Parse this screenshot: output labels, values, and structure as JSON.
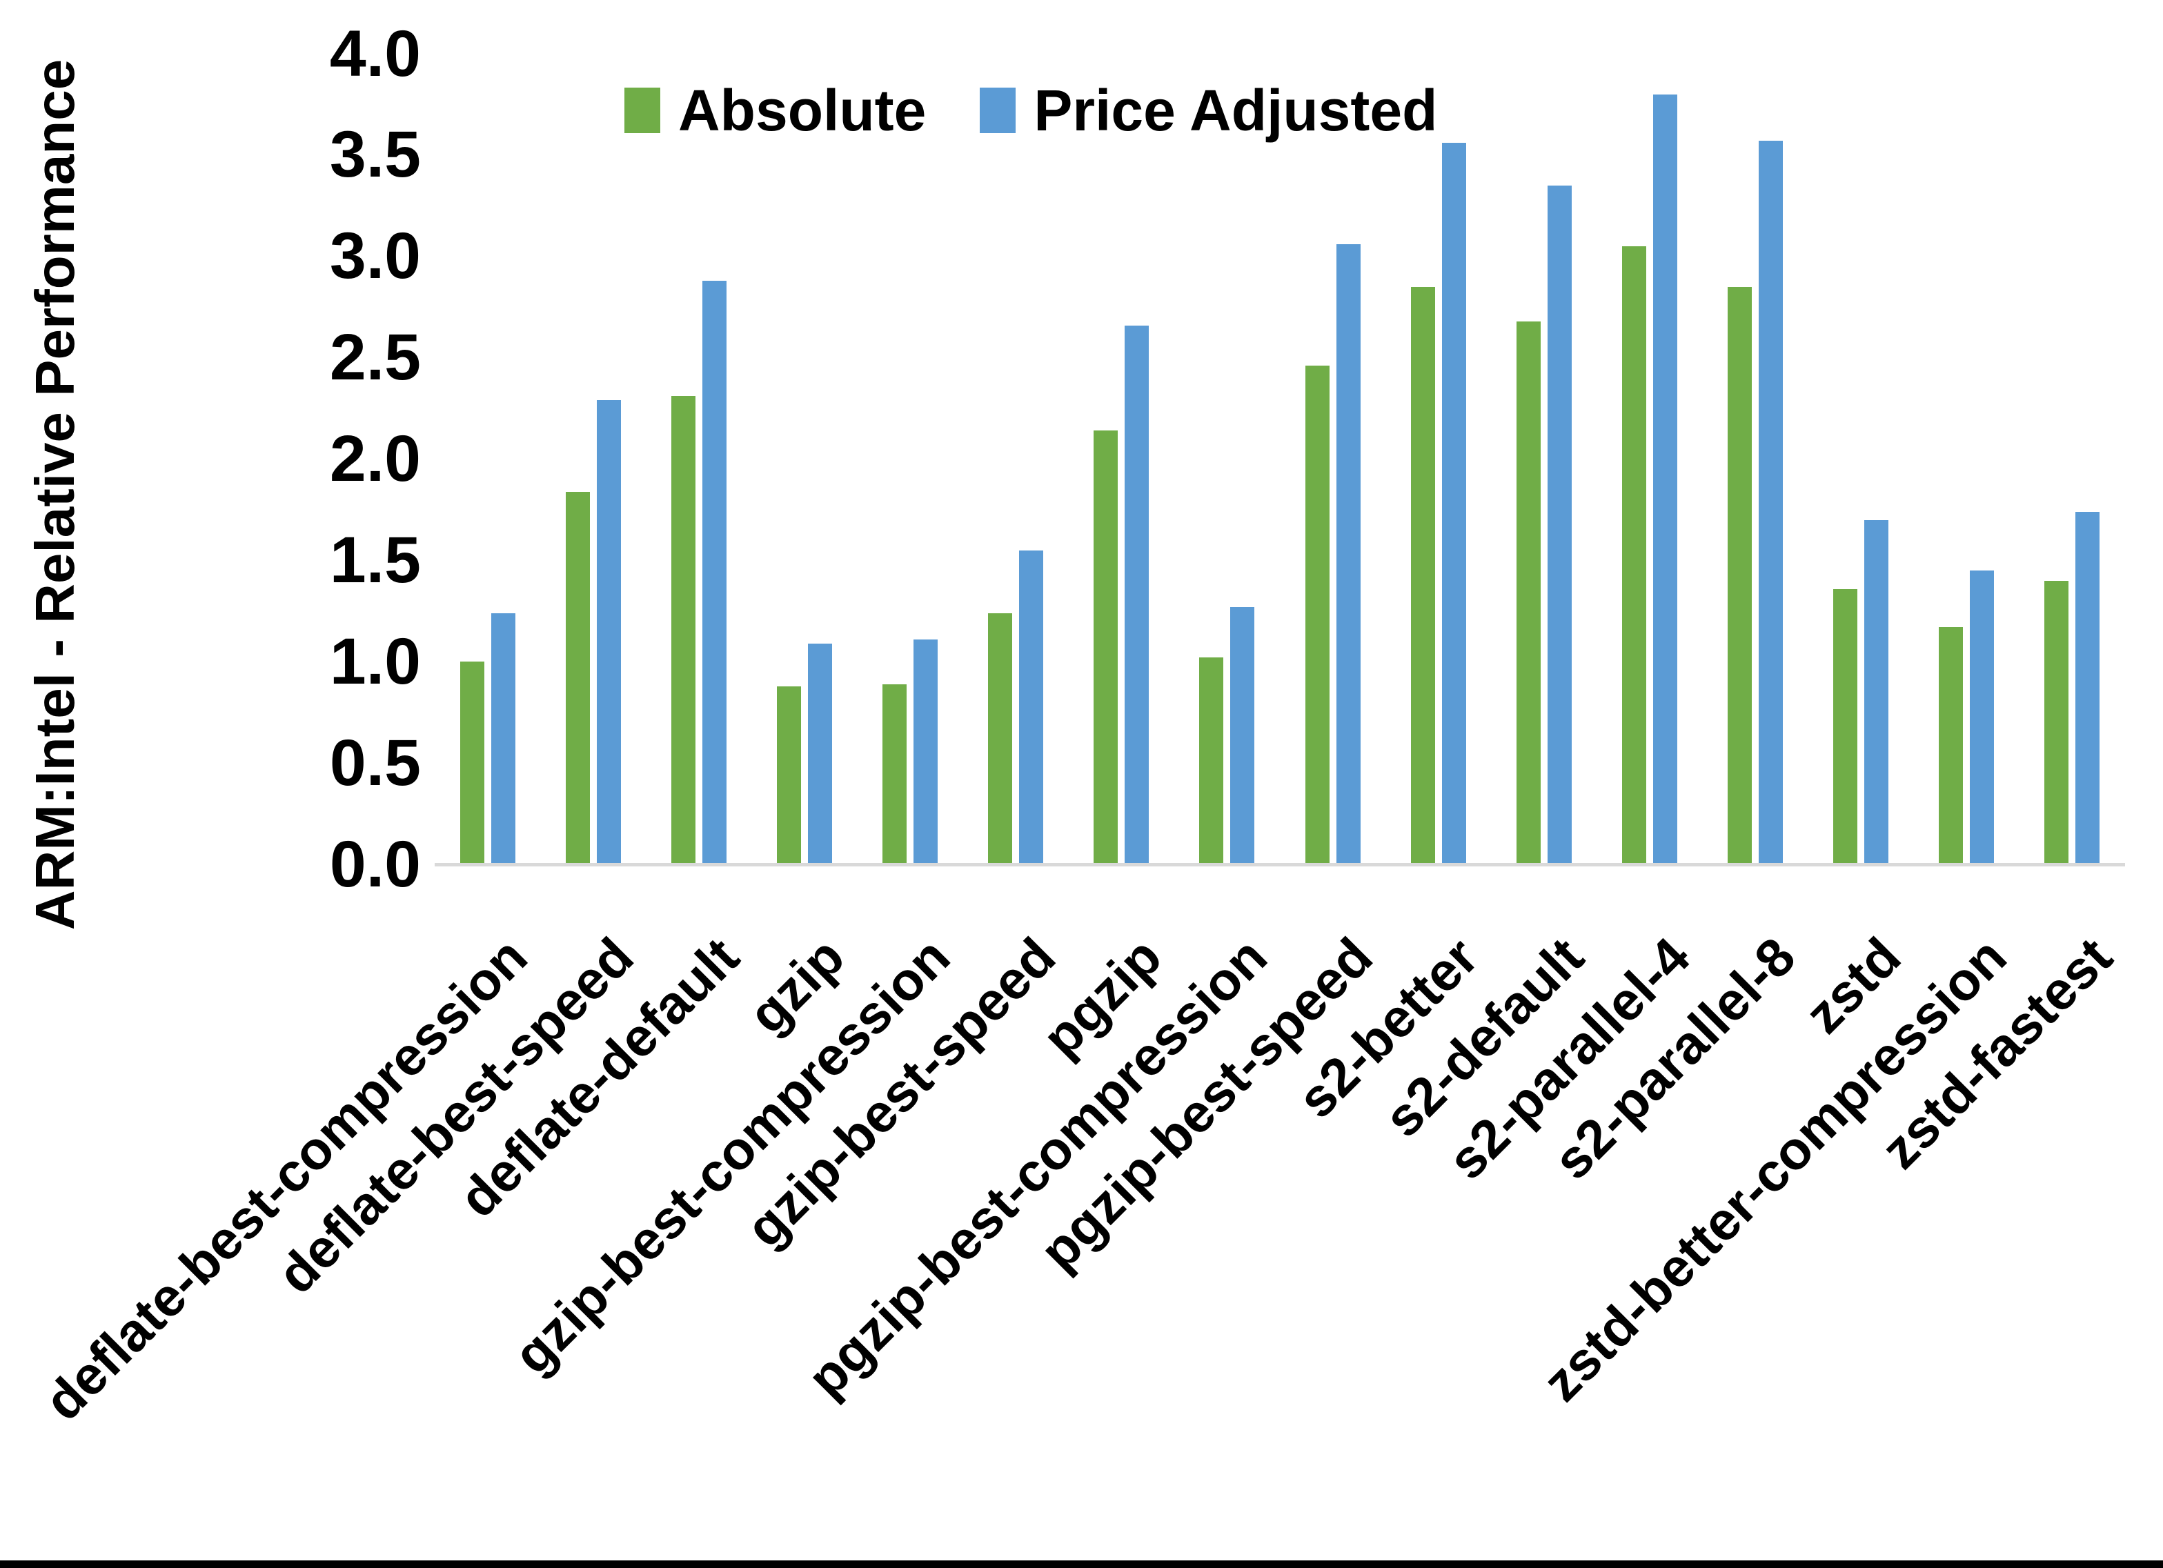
{
  "figure": {
    "background_color": "#FFFFFF",
    "bottom_border_color": "#000000",
    "axis_line_color": "#D9D9D9",
    "text_color": "#000000"
  },
  "legend": {
    "absolute_label": "Absolute",
    "price_adjusted_label": "Price Adjusted"
  },
  "chart_data": {
    "type": "bar",
    "title": "",
    "xlabel": "",
    "ylabel": "ARM:Intel - Relative Performance",
    "ylim": [
      0.0,
      4.0
    ],
    "ytick_labels": [
      "4.0",
      "3.5",
      "3.0",
      "2.5",
      "2.0",
      "1.5",
      "1.0",
      "0.5",
      "0.0"
    ],
    "grid": false,
    "legend_position": "top-center",
    "legend_entries": [
      "Absolute",
      "Price Adjusted"
    ],
    "categories": [
      "deflate-best-compression",
      "deflate-best-speed",
      "deflate-default",
      "gzip",
      "gzip-best-compression",
      "gzip-best-speed",
      "pgzip",
      "pgzip-best-compression",
      "pgzip-best-speed",
      "s2-better",
      "s2-default",
      "s2-parallel-4",
      "s2-parallel-8",
      "zstd",
      "zstd-better-compression",
      "zstd-fastest"
    ],
    "series": [
      {
        "name": "Absolute",
        "color": "#70AD47",
        "values": [
          1.0,
          1.84,
          2.31,
          0.88,
          0.89,
          1.24,
          2.14,
          1.02,
          2.46,
          2.85,
          2.68,
          3.05,
          2.85,
          1.36,
          1.17,
          1.4
        ]
      },
      {
        "name": "Price Adjusted",
        "color": "#5B9BD5",
        "values": [
          1.24,
          2.29,
          2.88,
          1.09,
          1.11,
          1.55,
          2.66,
          1.27,
          3.06,
          3.56,
          3.35,
          3.8,
          3.57,
          1.7,
          1.45,
          1.74
        ]
      }
    ]
  }
}
